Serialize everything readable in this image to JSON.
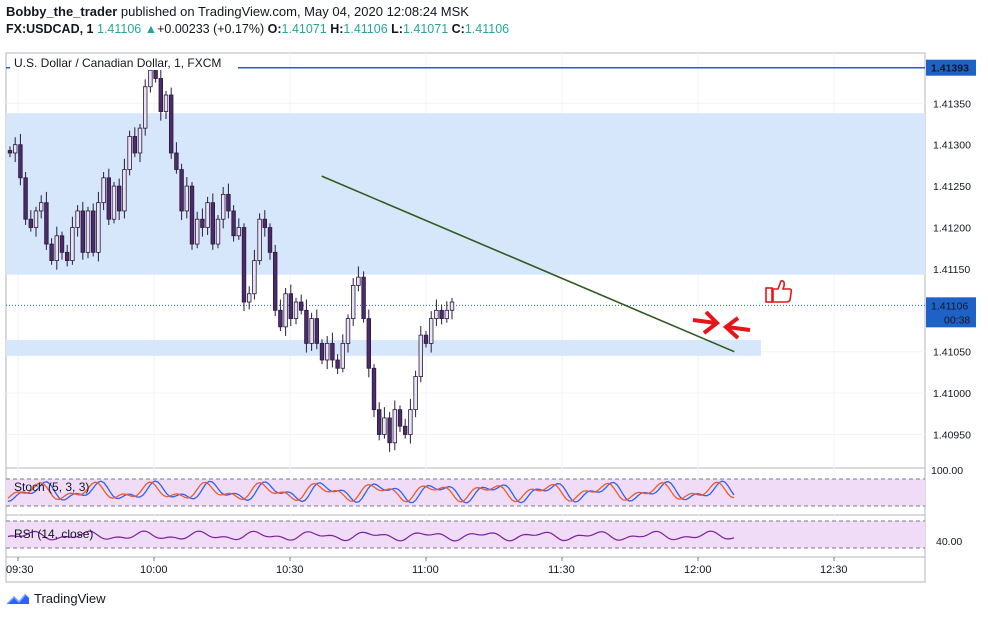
{
  "header": {
    "author": "Bobby_the_trader",
    "published_text": " published on TradingView.com, May 04, 2020 12:08:24 MSK",
    "symbol": "FX:USDCAD, 1",
    "last": "1.41106",
    "change": "+0.00233 (+0.17%)",
    "change_arrow": "▲",
    "o_label": "O:",
    "o_value": "1.41071",
    "h_label": "H:",
    "h_value": "1.41106",
    "l_label": "L:",
    "l_value": "1.41071",
    "c_label": "C:",
    "c_value": "1.41106"
  },
  "chart_title": "U.S. Dollar / Canadian Dollar, 1, FXCM",
  "price_axis": {
    "ticks": [
      "1.41350",
      "1.41300",
      "1.41250",
      "1.41200",
      "1.41150",
      "1.41050",
      "1.41000",
      "1.40950"
    ],
    "top_line_label": "1.41393",
    "current_label": "1.41106",
    "countdown_label": "00:38"
  },
  "time_axis": {
    "labels": [
      "09:30",
      "10:00",
      "10:30",
      "11:00",
      "11:30",
      "12:00",
      "12:30"
    ]
  },
  "stoch": {
    "title": "Stoch (5, 3, 3)",
    "axis_label": "100.00"
  },
  "rsi": {
    "title": "RSI (14, close)",
    "axis_label": "40.00"
  },
  "footer": {
    "brand": "TradingView"
  },
  "colors": {
    "zone": "#d6e6fb",
    "trendline": "#2e5c1e",
    "candle_up": "#e8e4f4",
    "candle_down": "#4b2b6b",
    "axis_badge": "#1e61c7",
    "stoch_k": "#2962ff",
    "stoch_d": "#f15a29",
    "rsi_line": "#7b1fa2",
    "indicator_bg": "#f0dcf7",
    "arrows": "#e8141a"
  },
  "chart_data": {
    "type": "candlestick",
    "symbol": "USDCAD",
    "timeframe": "1",
    "ylim": [
      1.4091,
      1.41405
    ],
    "levels": {
      "resistance_line": 1.41393,
      "current": 1.41106
    },
    "zones": [
      {
        "from": 1.41143,
        "to": 1.41338
      },
      {
        "from": 1.41045,
        "to": 1.41064
      }
    ],
    "trendline": {
      "from": [
        "10:37",
        1.41262
      ],
      "to": [
        "12:08",
        1.4105
      ]
    },
    "closes": [
      1.4129,
      1.413,
      1.4126,
      1.4121,
      1.412,
      1.4122,
      1.4123,
      1.4118,
      1.4116,
      1.4119,
      1.4117,
      1.4116,
      1.412,
      1.4122,
      1.4117,
      1.4122,
      1.4117,
      1.4123,
      1.4126,
      1.4121,
      1.4125,
      1.4122,
      1.4127,
      1.4131,
      1.4129,
      1.4132,
      1.4137,
      1.4139,
      1.4138,
      1.4134,
      1.4136,
      1.4129,
      1.4127,
      1.4122,
      1.4125,
      1.4118,
      1.4121,
      1.412,
      1.4123,
      1.4118,
      1.4121,
      1.4124,
      1.4122,
      1.4119,
      1.412,
      1.4111,
      1.4112,
      1.4116,
      1.4121,
      1.412,
      1.4117,
      1.411,
      1.4108,
      1.4112,
      1.4109,
      1.4111,
      1.411,
      1.4106,
      1.4109,
      1.4106,
      1.4104,
      1.4106,
      1.4104,
      1.4103,
      1.4106,
      1.4109,
      1.4113,
      1.4114,
      1.4109,
      1.4103,
      1.4098,
      1.4095,
      1.4097,
      1.4094,
      1.4098,
      1.4096,
      1.4095,
      1.4098,
      1.4102,
      1.4107,
      1.4106,
      1.4109,
      1.411,
      1.4109,
      1.411,
      1.4111
    ]
  }
}
